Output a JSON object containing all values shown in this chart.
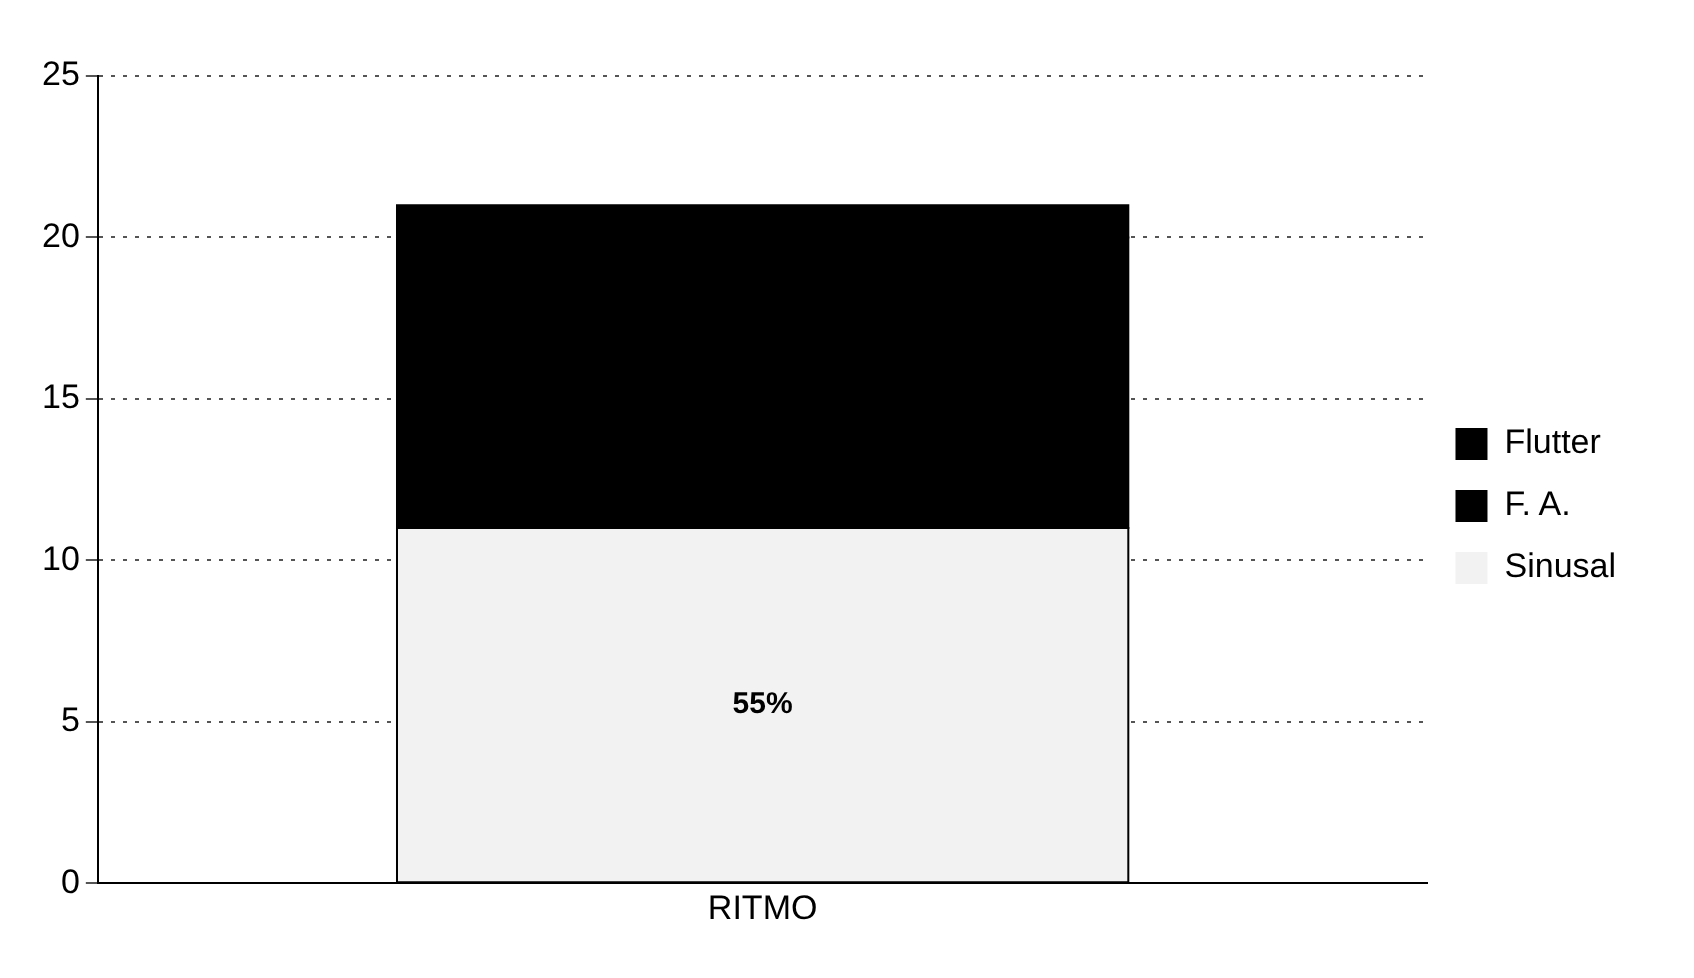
{
  "chart_data": {
    "type": "bar",
    "categories": [
      "RITMO"
    ],
    "stacked": true,
    "series": [
      {
        "name": "Sinusal",
        "color": "#f2f2f2",
        "values": [
          11
        ]
      },
      {
        "name": "F. A.",
        "color": "#000000",
        "values": [
          9
        ]
      },
      {
        "name": "Flutter",
        "color": "#000000",
        "values": [
          1
        ]
      }
    ],
    "annotations": [
      "55%"
    ],
    "ylim": [
      0,
      25
    ],
    "yticks": [
      0,
      5,
      10,
      15,
      20,
      25
    ],
    "grid": "y",
    "legend": "right"
  }
}
